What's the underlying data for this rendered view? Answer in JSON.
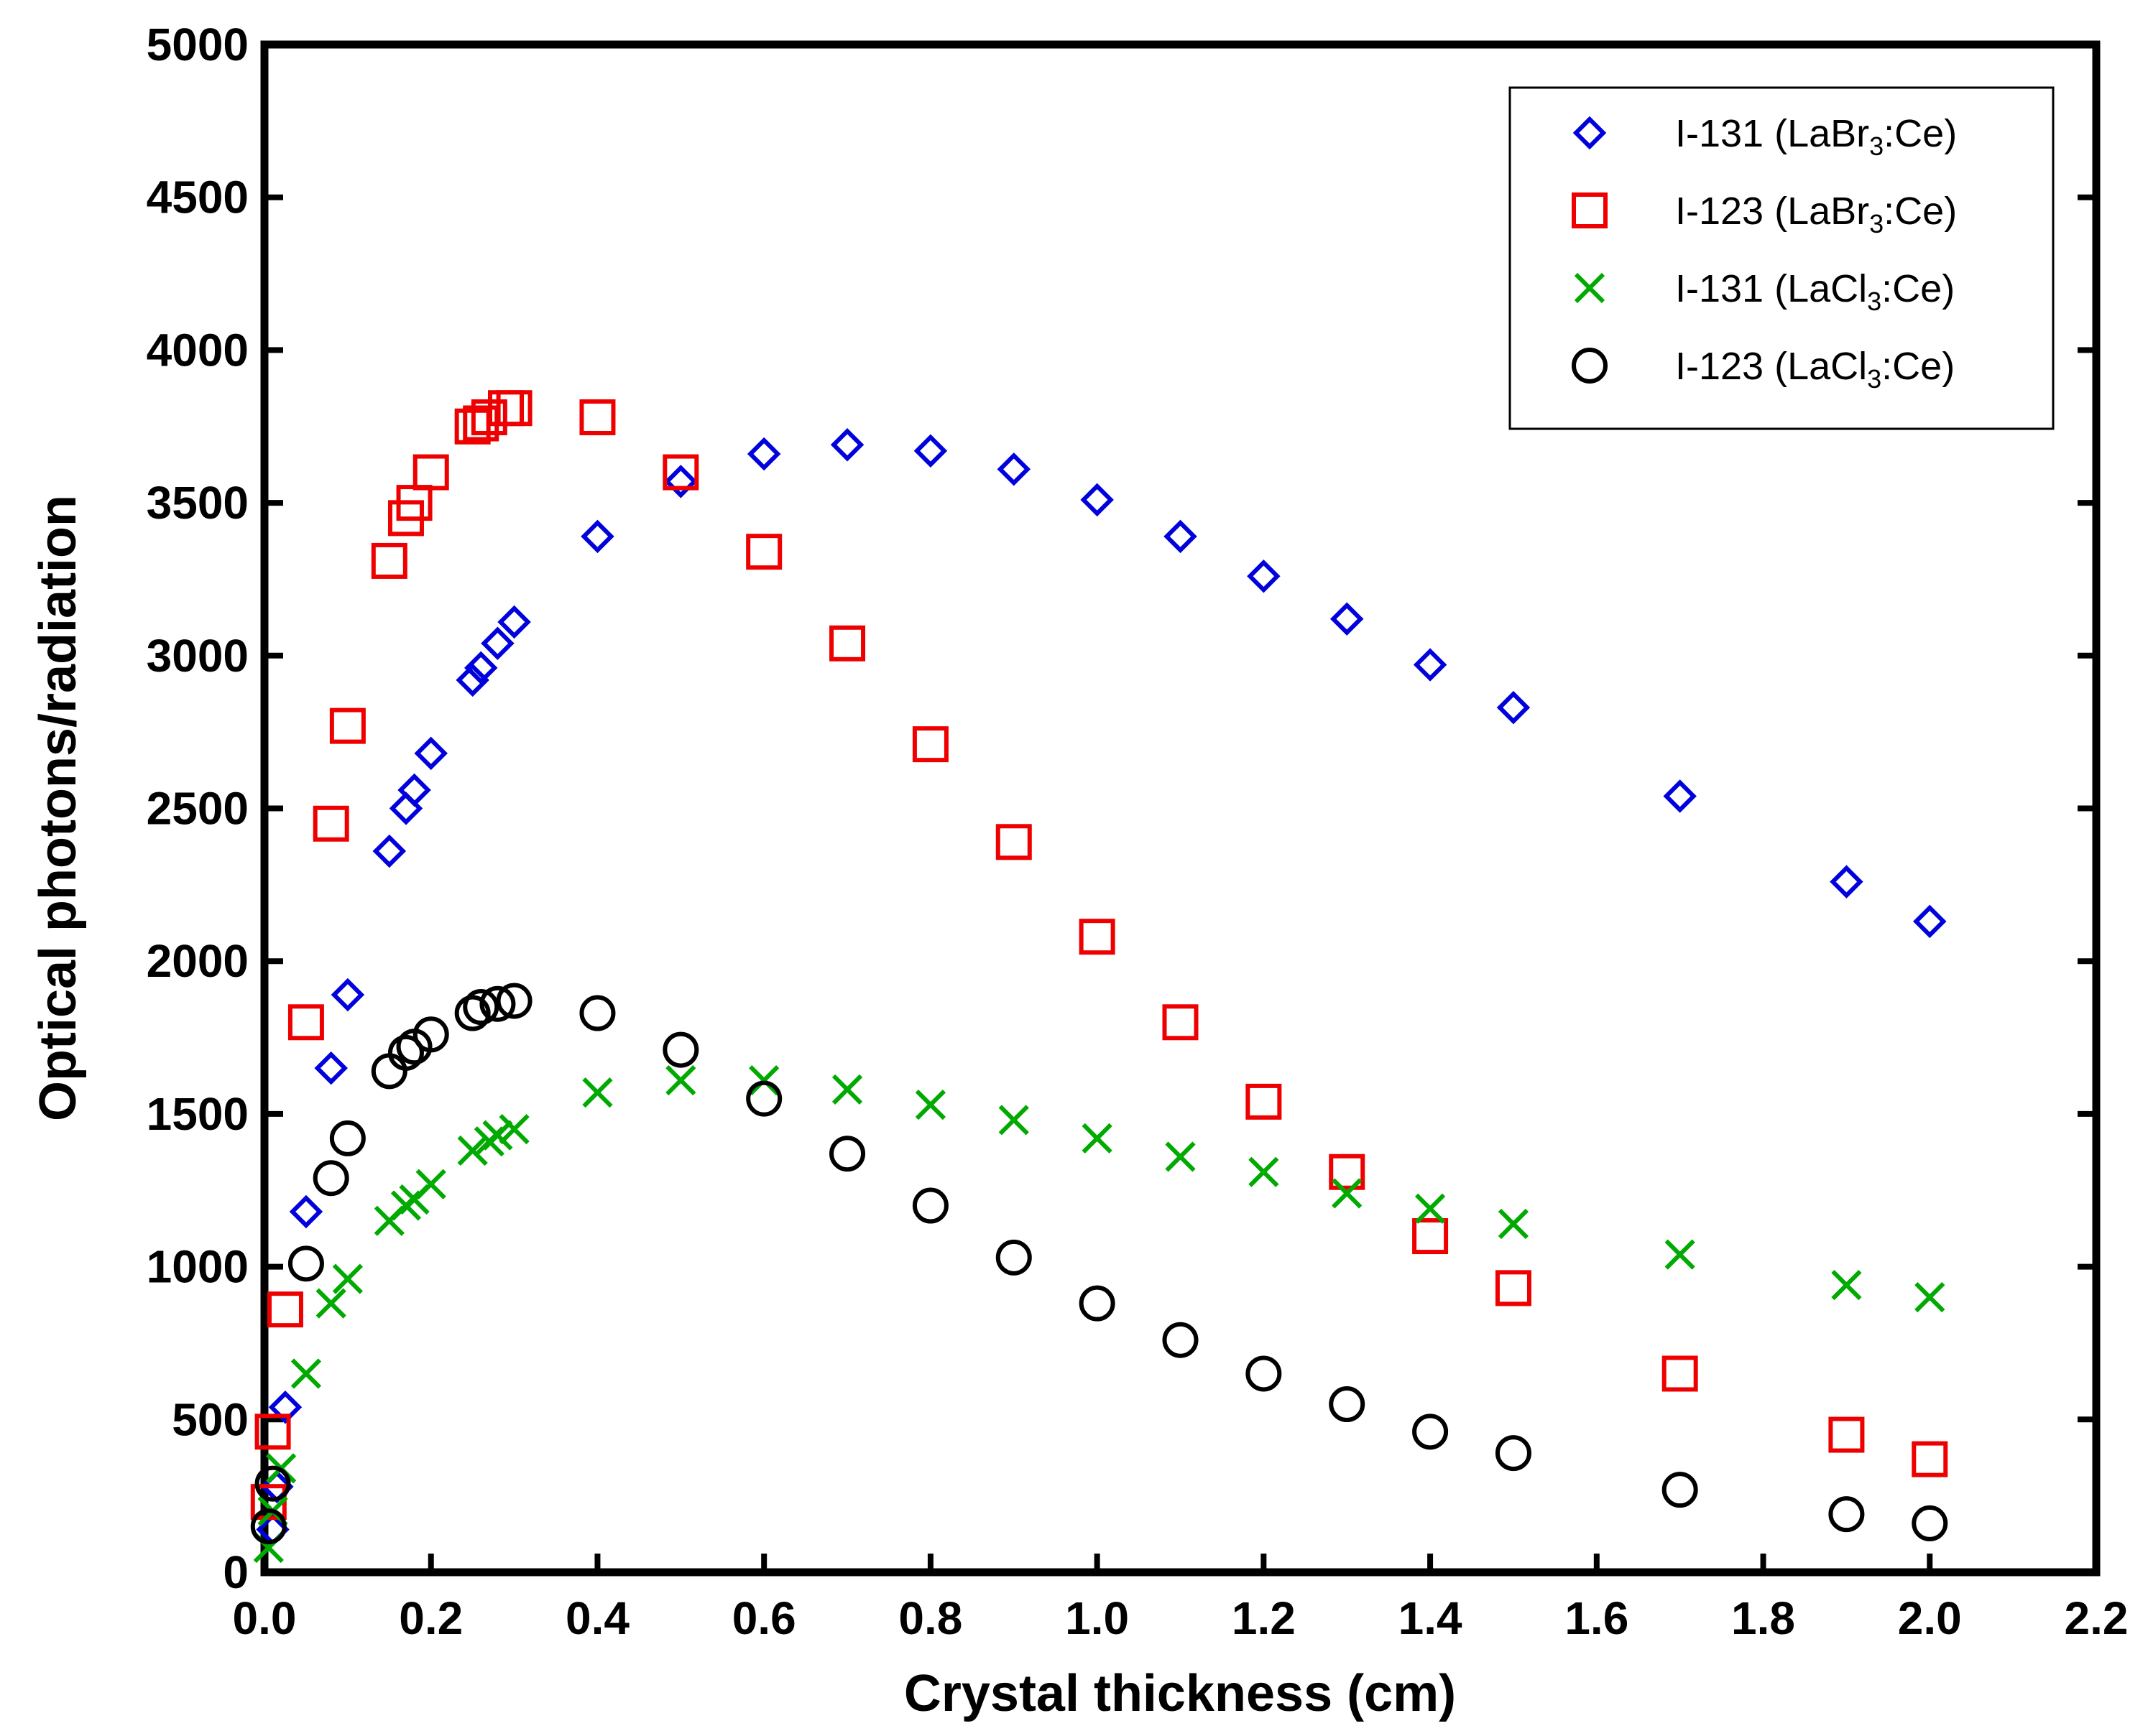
{
  "chart_data": {
    "type": "scatter",
    "title": "",
    "xlabel": "Crystal thickness (cm)",
    "ylabel": "Optical photons/radiation",
    "xlim": [
      0.0,
      2.2
    ],
    "ylim": [
      0,
      5000
    ],
    "x_ticks": [
      "0.0",
      "0.2",
      "0.4",
      "0.6",
      "0.8",
      "1.0",
      "1.2",
      "1.4",
      "1.6",
      "1.8",
      "2.0",
      "2.2"
    ],
    "y_ticks": [
      "0",
      "500",
      "1000",
      "1500",
      "2000",
      "2500",
      "3000",
      "3500",
      "4000",
      "4500",
      "5000"
    ],
    "grid": false,
    "legend_position": "top-right",
    "series": [
      {
        "name": "I-131 (LaBr3:Ce)",
        "legend_parts": {
          "pre": "I-131 (LaBr",
          "sub": "3",
          "post": ":Ce)"
        },
        "marker": "diamond",
        "color": "#0000dd",
        "x": [
          0.01,
          0.015,
          0.025,
          0.05,
          0.08,
          0.1,
          0.15,
          0.17,
          0.18,
          0.2,
          0.25,
          0.26,
          0.28,
          0.3,
          0.4,
          0.5,
          0.6,
          0.7,
          0.8,
          0.9,
          1.0,
          1.1,
          1.2,
          1.3,
          1.4,
          1.5,
          1.7,
          1.9,
          2.0
        ],
        "y": [
          140,
          280,
          540,
          1180,
          1650,
          1890,
          2360,
          2500,
          2560,
          2680,
          2920,
          2960,
          3040,
          3110,
          3390,
          3570,
          3660,
          3690,
          3670,
          3610,
          3510,
          3390,
          3260,
          3120,
          2970,
          2830,
          2540,
          2260,
          2130
        ]
      },
      {
        "name": "I-123 (LaBr3:Ce)",
        "legend_parts": {
          "pre": "I-123 (LaBr",
          "sub": "3",
          "post": ":Ce)"
        },
        "marker": "square",
        "color": "#ee0000",
        "x": [
          0.005,
          0.01,
          0.025,
          0.05,
          0.08,
          0.1,
          0.15,
          0.17,
          0.18,
          0.2,
          0.25,
          0.26,
          0.27,
          0.29,
          0.3,
          0.4,
          0.5,
          0.6,
          0.7,
          0.8,
          0.9,
          1.0,
          1.1,
          1.2,
          1.3,
          1.4,
          1.5,
          1.7,
          1.9,
          2.0
        ],
        "y": [
          230,
          460,
          860,
          1800,
          2450,
          2770,
          3310,
          3450,
          3500,
          3600,
          3750,
          3760,
          3780,
          3810,
          3810,
          3780,
          3600,
          3340,
          3040,
          2710,
          2390,
          2080,
          1800,
          1540,
          1310,
          1100,
          930,
          650,
          450,
          370
        ]
      },
      {
        "name": "I-131 (LaCl3:Ce)",
        "legend_parts": {
          "pre": "I-131 (LaCl",
          "sub": "3",
          "post": ":Ce)"
        },
        "marker": "x",
        "color": "#00aa00",
        "x": [
          0.005,
          0.01,
          0.02,
          0.05,
          0.08,
          0.1,
          0.15,
          0.17,
          0.18,
          0.2,
          0.25,
          0.27,
          0.28,
          0.3,
          0.4,
          0.5,
          0.6,
          0.7,
          0.8,
          0.9,
          1.0,
          1.1,
          1.2,
          1.3,
          1.4,
          1.5,
          1.7,
          1.9,
          2.0
        ],
        "y": [
          80,
          200,
          340,
          650,
          880,
          960,
          1150,
          1200,
          1220,
          1270,
          1380,
          1410,
          1430,
          1450,
          1570,
          1610,
          1610,
          1580,
          1530,
          1480,
          1420,
          1360,
          1310,
          1240,
          1190,
          1140,
          1040,
          940,
          900
        ]
      },
      {
        "name": "I-123 (LaCl3:Ce)",
        "legend_parts": {
          "pre": "I-123 (LaCl",
          "sub": "3",
          "post": ":Ce)"
        },
        "marker": "circle",
        "color": "#000000",
        "x": [
          0.005,
          0.01,
          0.05,
          0.08,
          0.1,
          0.15,
          0.17,
          0.18,
          0.2,
          0.25,
          0.26,
          0.28,
          0.3,
          0.4,
          0.5,
          0.6,
          0.7,
          0.8,
          0.9,
          1.0,
          1.1,
          1.2,
          1.3,
          1.4,
          1.5,
          1.7,
          1.9,
          2.0
        ],
        "y": [
          150,
          290,
          1010,
          1290,
          1420,
          1640,
          1700,
          1720,
          1760,
          1830,
          1850,
          1860,
          1870,
          1830,
          1710,
          1550,
          1370,
          1200,
          1030,
          880,
          760,
          650,
          550,
          460,
          390,
          270,
          190,
          160
        ]
      }
    ]
  }
}
